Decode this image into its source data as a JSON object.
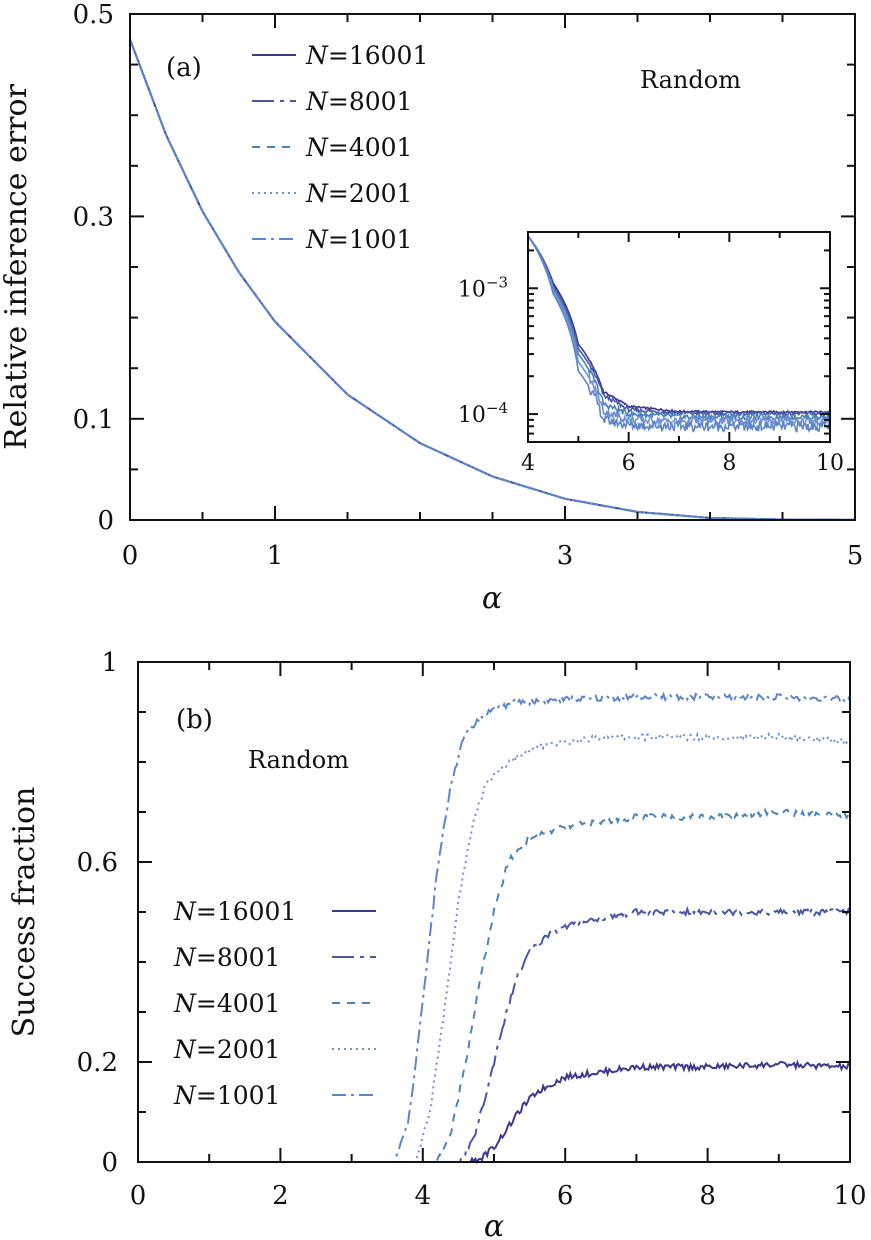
{
  "series_styles": [
    {
      "name_prefix": "N",
      "name_value": "16001",
      "color": "#3d3a8c",
      "dash": "none"
    },
    {
      "name_prefix": "N",
      "name_value": "8001",
      "color": "#4a57a8",
      "dash": "22,6,4,6"
    },
    {
      "name_prefix": "N",
      "name_value": "4001",
      "color": "#4a84b9",
      "dash": "8,7"
    },
    {
      "name_prefix": "N",
      "name_value": "2001",
      "color": "#6f8fd6",
      "dash": "2,4"
    },
    {
      "name_prefix": "N",
      "name_value": "1001",
      "color": "#5d86c8",
      "dash": "14,5,3,5"
    }
  ],
  "chart_data": [
    {
      "type": "line",
      "panel_label": "(a)",
      "annotation": "Random",
      "title": "",
      "xlabel": "α",
      "ylabel": "Relative inference error",
      "xlim": [
        0,
        5
      ],
      "ylim": [
        0,
        0.5
      ],
      "xticks": [
        0,
        1,
        3,
        5
      ],
      "xtick_labels": [
        "0",
        "1",
        "3",
        "5"
      ],
      "yticks": [
        0,
        0.1,
        0.3,
        0.5
      ],
      "ytick_labels": [
        "0",
        "0.1",
        "0.3",
        "0.5"
      ],
      "legend": [
        "N=16001",
        "N=8001",
        "N=4001",
        "N=2001",
        "N=1001"
      ],
      "series": [
        {
          "name": "N=16001",
          "x": [
            0,
            0.25,
            0.5,
            0.75,
            1,
            1.5,
            2,
            2.5,
            3,
            3.5,
            4,
            4.5,
            5
          ],
          "values": [
            0.475,
            0.38,
            0.305,
            0.245,
            0.196,
            0.124,
            0.076,
            0.043,
            0.021,
            0.008,
            0.002,
            0.0004,
            0.0001
          ]
        },
        {
          "name": "N=8001",
          "x": [
            0,
            0.25,
            0.5,
            0.75,
            1,
            1.5,
            2,
            2.5,
            3,
            3.5,
            4,
            4.5,
            5
          ],
          "values": [
            0.475,
            0.38,
            0.305,
            0.245,
            0.196,
            0.124,
            0.076,
            0.043,
            0.021,
            0.008,
            0.002,
            0.0004,
            0.0001
          ]
        },
        {
          "name": "N=4001",
          "x": [
            0,
            0.25,
            0.5,
            0.75,
            1,
            1.5,
            2,
            2.5,
            3,
            3.5,
            4,
            4.5,
            5
          ],
          "values": [
            0.475,
            0.38,
            0.305,
            0.245,
            0.196,
            0.124,
            0.076,
            0.043,
            0.021,
            0.008,
            0.002,
            0.0004,
            0.0001
          ]
        },
        {
          "name": "N=2001",
          "x": [
            0,
            0.25,
            0.5,
            0.75,
            1,
            1.5,
            2,
            2.5,
            3,
            3.5,
            4,
            4.5,
            5
          ],
          "values": [
            0.475,
            0.38,
            0.305,
            0.245,
            0.196,
            0.124,
            0.076,
            0.043,
            0.021,
            0.008,
            0.002,
            0.0004,
            0.0001
          ]
        },
        {
          "name": "N=1001",
          "x": [
            0,
            0.25,
            0.5,
            0.75,
            1,
            1.5,
            2,
            2.5,
            3,
            3.5,
            4,
            4.5,
            5
          ],
          "values": [
            0.475,
            0.38,
            0.305,
            0.245,
            0.196,
            0.124,
            0.076,
            0.043,
            0.021,
            0.008,
            0.002,
            0.0004,
            0.0001
          ]
        }
      ],
      "inset": {
        "type": "line",
        "yscale": "log",
        "xlim": [
          4,
          10
        ],
        "ylim": [
          6e-05,
          0.0028
        ],
        "xticks": [
          4,
          6,
          8,
          10
        ],
        "xtick_labels": [
          "4",
          "6",
          "8",
          "10"
        ],
        "ytick_labels": [
          {
            "base": "10",
            "exp": "−3",
            "value": 0.001
          },
          {
            "base": "10",
            "exp": "−4",
            "value": 0.0001
          }
        ],
        "series": [
          {
            "name": "N=16001",
            "x": [
              4,
              4.5,
              5,
              5.5,
              6,
              7,
              8,
              9,
              10
            ],
            "values": [
              0.0026,
              0.0011,
              0.00036,
              0.00015,
              0.000115,
              0.000105,
              0.000104,
              0.000104,
              0.000104
            ]
          },
          {
            "name": "N=8001",
            "x": [
              4,
              4.5,
              5,
              5.5,
              6,
              7,
              8,
              9,
              10
            ],
            "values": [
              0.0026,
              0.00105,
              0.00033,
              0.00014,
              0.000108,
              0.000102,
              0.000101,
              0.000101,
              0.000101
            ]
          },
          {
            "name": "N=4001",
            "x": [
              4,
              4.5,
              5,
              5.5,
              6,
              7,
              8,
              9,
              10
            ],
            "values": [
              0.0026,
              0.001,
              0.0003,
              0.00012,
              0.0001,
              9.5e-05,
              9.5e-05,
              9.5e-05,
              9.5e-05
            ]
          },
          {
            "name": "N=2001",
            "x": [
              4,
              4.5,
              5,
              5.5,
              6,
              7,
              8,
              9,
              10
            ],
            "values": [
              0.0026,
              0.00095,
              0.00026,
              0.000105,
              9e-05,
              8.8e-05,
              8.8e-05,
              8.8e-05,
              8.8e-05
            ]
          },
          {
            "name": "N=1001",
            "x": [
              4,
              4.5,
              5,
              5.5,
              6,
              7,
              8,
              9,
              10
            ],
            "values": [
              0.0026,
              0.0009,
              0.00022,
              9e-05,
              8.2e-05,
              8e-05,
              8e-05,
              8e-05,
              8e-05
            ]
          }
        ]
      }
    },
    {
      "type": "line",
      "panel_label": "(b)",
      "annotation": "Random",
      "title": "",
      "xlabel": "α",
      "ylabel": "Success fraction",
      "xlim": [
        0,
        10
      ],
      "ylim": [
        0,
        1
      ],
      "xticks": [
        0,
        2,
        4,
        6,
        8,
        10
      ],
      "xtick_labels": [
        "0",
        "2",
        "4",
        "6",
        "8",
        "10"
      ],
      "yticks": [
        0,
        0.2,
        0.6,
        1
      ],
      "ytick_labels": [
        "0",
        "0.2",
        "0.6",
        "1"
      ],
      "legend": [
        "N=16001",
        "N=8001",
        "N=4001",
        "N=2001",
        "N=1001"
      ],
      "series": [
        {
          "name": "N=16001",
          "x": [
            0,
            4.6,
            4.8,
            5.0,
            5.2,
            5.4,
            5.6,
            6.0,
            6.5,
            7,
            8,
            9,
            10
          ],
          "values": [
            0,
            0,
            0.005,
            0.03,
            0.07,
            0.11,
            0.14,
            0.17,
            0.18,
            0.19,
            0.19,
            0.195,
            0.19
          ]
        },
        {
          "name": "N=8001",
          "x": [
            0,
            4.5,
            4.7,
            4.9,
            5.1,
            5.3,
            5.5,
            5.8,
            6.2,
            7,
            8,
            9,
            10
          ],
          "values": [
            0,
            0,
            0.04,
            0.14,
            0.26,
            0.36,
            0.42,
            0.46,
            0.48,
            0.5,
            0.5,
            0.5,
            0.5
          ]
        },
        {
          "name": "N=4001",
          "x": [
            0,
            4.2,
            4.4,
            4.6,
            4.8,
            5.0,
            5.2,
            5.5,
            6.0,
            7,
            8,
            9,
            10
          ],
          "values": [
            0,
            0,
            0.06,
            0.2,
            0.36,
            0.5,
            0.6,
            0.65,
            0.67,
            0.69,
            0.69,
            0.7,
            0.69
          ]
        },
        {
          "name": "N=2001",
          "x": [
            0,
            3.9,
            4.1,
            4.3,
            4.5,
            4.7,
            4.9,
            5.2,
            5.6,
            6.5,
            8,
            9,
            10
          ],
          "values": [
            0,
            0,
            0.1,
            0.3,
            0.52,
            0.68,
            0.76,
            0.8,
            0.83,
            0.85,
            0.85,
            0.85,
            0.84
          ]
        },
        {
          "name": "N=1001",
          "x": [
            0,
            3.6,
            3.8,
            4.0,
            4.2,
            4.4,
            4.6,
            4.9,
            5.3,
            6.0,
            7,
            9,
            10
          ],
          "values": [
            0,
            0,
            0.08,
            0.32,
            0.58,
            0.76,
            0.86,
            0.9,
            0.92,
            0.925,
            0.93,
            0.93,
            0.925
          ]
        }
      ]
    }
  ]
}
